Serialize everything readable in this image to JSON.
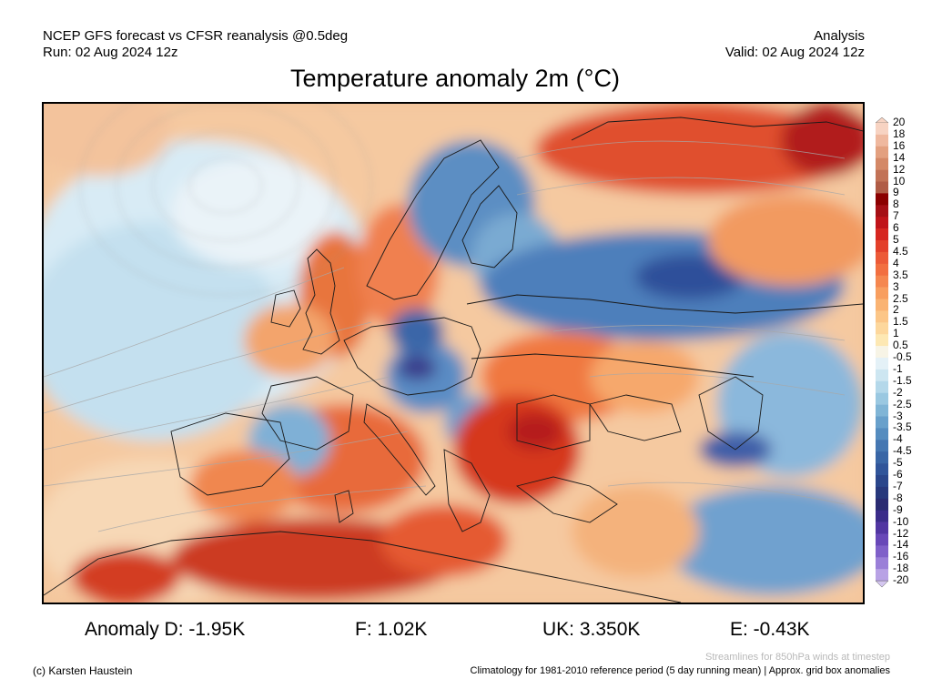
{
  "header": {
    "left_line1": "NCEP GFS forecast vs CFSR reanalysis @0.5deg",
    "left_line2": "Run: 02 Aug 2024 12z",
    "right_line1": "Analysis",
    "right_line2": "Valid: 02 Aug 2024 12z"
  },
  "chart_data": {
    "type": "heatmap",
    "title": "Temperature anomaly 2m (°C)",
    "region": "Europe",
    "colorbar": {
      "labels": [
        "20",
        "18",
        "16",
        "14",
        "12",
        "10",
        "9",
        "8",
        "7",
        "6",
        "5",
        "4.5",
        "4",
        "3.5",
        "3",
        "2.5",
        "2",
        "1.5",
        "1",
        "0.5",
        "-0.5",
        "-1",
        "-1.5",
        "-2",
        "-2.5",
        "-3",
        "-3.5",
        "-4",
        "-4.5",
        "-5",
        "-6",
        "-7",
        "-8",
        "-9",
        "-10",
        "-12",
        "-14",
        "-16",
        "-18",
        "-20"
      ],
      "colors": [
        "#f7d3c2",
        "#efb89e",
        "#e3a07f",
        "#d48866",
        "#c27256",
        "#b05c46",
        "#8b0000",
        "#a50f15",
        "#c0141a",
        "#d62620",
        "#e3402a",
        "#ec5a37",
        "#f26f40",
        "#f5874f",
        "#f89e5f",
        "#fab372",
        "#fcc687",
        "#fdd79c",
        "#fde8b3",
        "#f7f4e6",
        "#e4f1f7",
        "#cde6f1",
        "#b4d8ea",
        "#9ac8e1",
        "#80b5d6",
        "#68a0cb",
        "#558cbf",
        "#4577b2",
        "#3966a6",
        "#30559a",
        "#2a468b",
        "#27387c",
        "#2a2b72",
        "#3b2c8a",
        "#5136a2",
        "#6848b8",
        "#7f60c9",
        "#9a7fd8",
        "#b8a2e5",
        "#d4c6f0"
      ]
    },
    "anomalies": [
      {
        "region": "D",
        "value": -1.95,
        "unit": "K"
      },
      {
        "region": "F",
        "value": 1.02,
        "unit": "K"
      },
      {
        "region": "UK",
        "value": 3.35,
        "unit": "K"
      },
      {
        "region": "E",
        "value": -0.43,
        "unit": "K"
      }
    ]
  },
  "stats": {
    "d": "Anomaly D: -1.95K",
    "f": "F: 1.02K",
    "uk": "UK: 3.350K",
    "e": "E: -0.43K"
  },
  "footer": {
    "streamlines": "Streamlines for 850hPa winds at timestep",
    "climatology": "Climatology for 1981-2010 reference period (5 day running mean) | Approx. grid box anomalies",
    "credit": "(c) Karsten Haustein"
  }
}
